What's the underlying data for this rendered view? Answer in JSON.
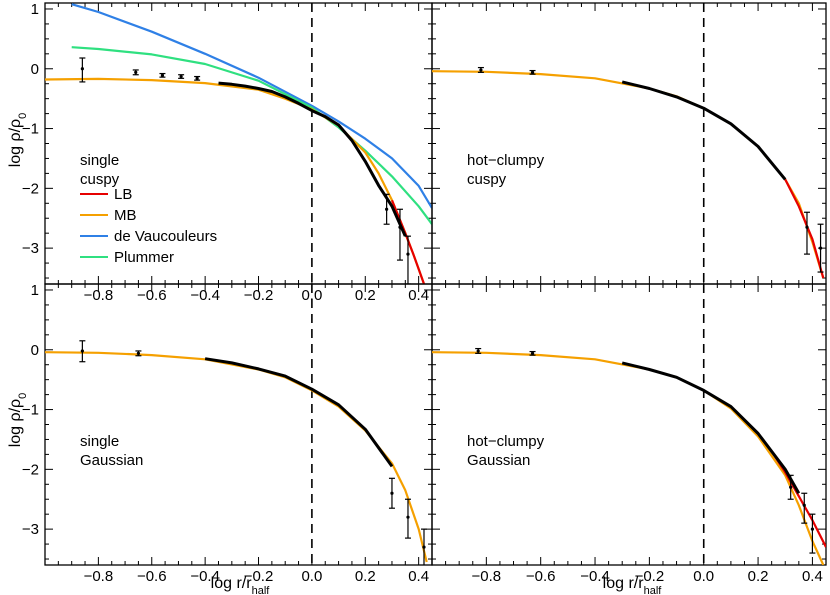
{
  "figure": {
    "y_axis_label_main": "log ρ/ρ",
    "y_axis_label_sub": "0",
    "x_axis_label_main": "log r/r",
    "x_axis_label_sub": "half"
  },
  "colors": {
    "LB": "#e60000",
    "MB": "#f5a000",
    "de Vaucouleurs": "#2f80e6",
    "Plummer": "#2fe080",
    "data": "#000000"
  },
  "chart_data": [
    {
      "panel": "top-left",
      "type": "line",
      "annotation": [
        "single",
        "cuspy"
      ],
      "legend": [
        "LB",
        "MB",
        "de Vaucouleurs",
        "Plummer"
      ],
      "legend_position": "bottom-left",
      "xlim": [
        -1.0,
        0.45
      ],
      "ylim": [
        -3.6,
        1.1
      ],
      "x_ticks": [
        -0.8,
        -0.6,
        -0.4,
        -0.2,
        0.0,
        0.2,
        0.4
      ],
      "y_ticks": [
        1,
        0,
        -1,
        -2,
        -3
      ],
      "dashed_vline_x": 0.0,
      "series": [
        {
          "name": "de Vaucouleurs",
          "x": [
            -0.9,
            -0.8,
            -0.6,
            -0.4,
            -0.2,
            0.0,
            0.1,
            0.2,
            0.3,
            0.4,
            0.45
          ],
          "y": [
            1.08,
            0.95,
            0.62,
            0.25,
            -0.15,
            -0.62,
            -0.88,
            -1.17,
            -1.5,
            -1.96,
            -2.33
          ]
        },
        {
          "name": "Plummer",
          "x": [
            -0.9,
            -0.8,
            -0.6,
            -0.4,
            -0.2,
            0.0,
            0.1,
            0.2,
            0.3,
            0.4,
            0.45
          ],
          "y": [
            0.36,
            0.33,
            0.24,
            0.08,
            -0.2,
            -0.65,
            -0.98,
            -1.37,
            -1.8,
            -2.3,
            -2.6
          ]
        },
        {
          "name": "MB",
          "x": [
            -1.0,
            -0.8,
            -0.6,
            -0.4,
            -0.2,
            -0.1,
            0.0,
            0.1,
            0.2,
            0.25,
            0.3,
            0.35,
            0.38,
            0.4,
            0.42
          ],
          "y": [
            -0.18,
            -0.17,
            -0.19,
            -0.24,
            -0.35,
            -0.5,
            -0.68,
            -0.95,
            -1.4,
            -1.75,
            -2.2,
            -2.75,
            -3.1,
            -3.35,
            -3.6
          ]
        },
        {
          "name": "LB",
          "x": [
            0.3,
            0.35,
            0.38,
            0.4,
            0.42
          ],
          "y": [
            -2.2,
            -2.75,
            -3.1,
            -3.35,
            -3.6
          ]
        },
        {
          "name": "data",
          "x": [
            -0.35,
            -0.3,
            -0.25,
            -0.2,
            -0.15,
            -0.1,
            -0.05,
            0.0,
            0.05,
            0.1,
            0.15,
            0.2,
            0.25,
            0.3,
            0.35
          ],
          "y": [
            -0.24,
            -0.26,
            -0.29,
            -0.33,
            -0.38,
            -0.47,
            -0.58,
            -0.7,
            -0.8,
            -0.94,
            -1.2,
            -1.55,
            -1.95,
            -2.3,
            -2.8
          ]
        }
      ],
      "error_bars": [
        {
          "x": -0.86,
          "y": 0.0,
          "lo": -0.22,
          "hi": 0.18
        },
        {
          "x": -0.66,
          "y": -0.06,
          "lo": -0.1,
          "hi": -0.02
        },
        {
          "x": -0.56,
          "y": -0.11,
          "lo": -0.14,
          "hi": -0.08
        },
        {
          "x": -0.49,
          "y": -0.13,
          "lo": -0.16,
          "hi": -0.1
        },
        {
          "x": -0.43,
          "y": -0.16,
          "lo": -0.19,
          "hi": -0.13
        },
        {
          "x": 0.28,
          "y": -2.35,
          "lo": -2.6,
          "hi": -2.1
        },
        {
          "x": 0.33,
          "y": -2.65,
          "lo": -3.2,
          "hi": -2.35
        },
        {
          "x": 0.36,
          "y": -3.1,
          "lo": -3.6,
          "hi": -2.8
        }
      ]
    },
    {
      "panel": "top-right",
      "type": "line",
      "annotation": [
        "hot−clumpy",
        "cuspy"
      ],
      "xlim": [
        -1.0,
        0.45
      ],
      "ylim": [
        -3.6,
        1.1
      ],
      "dashed_vline_x": 0.0,
      "series": [
        {
          "name": "MB",
          "x": [
            -1.0,
            -0.8,
            -0.6,
            -0.4,
            -0.2,
            -0.1,
            0.0,
            0.1,
            0.2,
            0.3,
            0.35,
            0.4,
            0.44
          ],
          "y": [
            -0.04,
            -0.05,
            -0.09,
            -0.16,
            -0.33,
            -0.46,
            -0.66,
            -0.92,
            -1.3,
            -1.85,
            -2.25,
            -2.9,
            -3.5
          ]
        },
        {
          "name": "LB",
          "x": [
            0.3,
            0.35,
            0.4,
            0.44
          ],
          "y": [
            -1.85,
            -2.3,
            -2.85,
            -3.5
          ]
        },
        {
          "name": "data",
          "x": [
            -0.3,
            -0.2,
            -0.1,
            0.0,
            0.1,
            0.2,
            0.3
          ],
          "y": [
            -0.22,
            -0.33,
            -0.47,
            -0.66,
            -0.92,
            -1.3,
            -1.85
          ]
        }
      ],
      "error_bars": [
        {
          "x": -0.82,
          "y": -0.02,
          "lo": -0.06,
          "hi": 0.02
        },
        {
          "x": -0.63,
          "y": -0.06,
          "lo": -0.09,
          "hi": -0.03
        },
        {
          "x": 0.38,
          "y": -2.65,
          "lo": -3.1,
          "hi": -2.4
        },
        {
          "x": 0.43,
          "y": -3.0,
          "lo": -3.4,
          "hi": -2.6
        }
      ]
    },
    {
      "panel": "bottom-left",
      "type": "line",
      "annotation": [
        "single",
        "Gaussian"
      ],
      "xlim": [
        -1.0,
        0.45
      ],
      "ylim": [
        -3.6,
        1.1
      ],
      "x_ticks": [
        -0.8,
        -0.6,
        -0.4,
        -0.2,
        0.0,
        0.2,
        0.4
      ],
      "y_ticks": [
        1,
        0,
        -1,
        -2,
        -3
      ],
      "dashed_vline_x": 0.0,
      "series": [
        {
          "name": "MB",
          "x": [
            -1.0,
            -0.8,
            -0.6,
            -0.4,
            -0.2,
            -0.1,
            0.0,
            0.1,
            0.2,
            0.3,
            0.35,
            0.4,
            0.43
          ],
          "y": [
            -0.04,
            -0.05,
            -0.09,
            -0.16,
            -0.33,
            -0.46,
            -0.68,
            -0.95,
            -1.35,
            -1.9,
            -2.35,
            -3.0,
            -3.55
          ]
        },
        {
          "name": "data",
          "x": [
            -0.4,
            -0.3,
            -0.2,
            -0.1,
            0.0,
            0.1,
            0.2,
            0.3
          ],
          "y": [
            -0.15,
            -0.22,
            -0.32,
            -0.44,
            -0.66,
            -0.92,
            -1.33,
            -1.95
          ]
        }
      ],
      "error_bars": [
        {
          "x": -0.86,
          "y": -0.02,
          "lo": -0.2,
          "hi": 0.15
        },
        {
          "x": -0.65,
          "y": -0.06,
          "lo": -0.1,
          "hi": -0.02
        },
        {
          "x": 0.3,
          "y": -2.4,
          "lo": -2.65,
          "hi": -2.15
        },
        {
          "x": 0.36,
          "y": -2.8,
          "lo": -3.15,
          "hi": -2.5
        },
        {
          "x": 0.42,
          "y": -3.3,
          "lo": -3.75,
          "hi": -3.0
        }
      ]
    },
    {
      "panel": "bottom-right",
      "type": "line",
      "annotation": [
        "hot−clumpy",
        "Gaussian"
      ],
      "xlim": [
        -1.0,
        0.45
      ],
      "ylim": [
        -3.6,
        1.1
      ],
      "x_ticks": [
        -0.8,
        -0.6,
        -0.4,
        -0.2,
        0.0,
        0.2,
        0.4
      ],
      "dashed_vline_x": 0.0,
      "series": [
        {
          "name": "MB",
          "x": [
            -1.0,
            -0.8,
            -0.6,
            -0.4,
            -0.2,
            -0.1,
            0.0,
            0.1,
            0.2,
            0.3,
            0.35,
            0.4,
            0.44
          ],
          "y": [
            -0.04,
            -0.05,
            -0.09,
            -0.16,
            -0.33,
            -0.46,
            -0.68,
            -0.98,
            -1.45,
            -2.1,
            -2.6,
            -3.2,
            -3.6
          ]
        },
        {
          "name": "LB",
          "x": [
            0.25,
            0.3,
            0.35,
            0.4,
            0.45
          ],
          "y": [
            -1.7,
            -2.05,
            -2.45,
            -2.85,
            -3.3
          ]
        },
        {
          "name": "data",
          "x": [
            -0.3,
            -0.2,
            -0.1,
            0.0,
            0.1,
            0.2,
            0.3,
            0.35
          ],
          "y": [
            -0.22,
            -0.33,
            -0.46,
            -0.68,
            -0.95,
            -1.4,
            -2.0,
            -2.4
          ]
        }
      ],
      "error_bars": [
        {
          "x": -0.83,
          "y": -0.02,
          "lo": -0.06,
          "hi": 0.02
        },
        {
          "x": -0.63,
          "y": -0.06,
          "lo": -0.09,
          "hi": -0.03
        },
        {
          "x": 0.32,
          "y": -2.3,
          "lo": -2.5,
          "hi": -2.1
        },
        {
          "x": 0.37,
          "y": -2.6,
          "lo": -2.9,
          "hi": -2.4
        },
        {
          "x": 0.4,
          "y": -3.0,
          "lo": -3.4,
          "hi": -2.75
        }
      ]
    }
  ]
}
